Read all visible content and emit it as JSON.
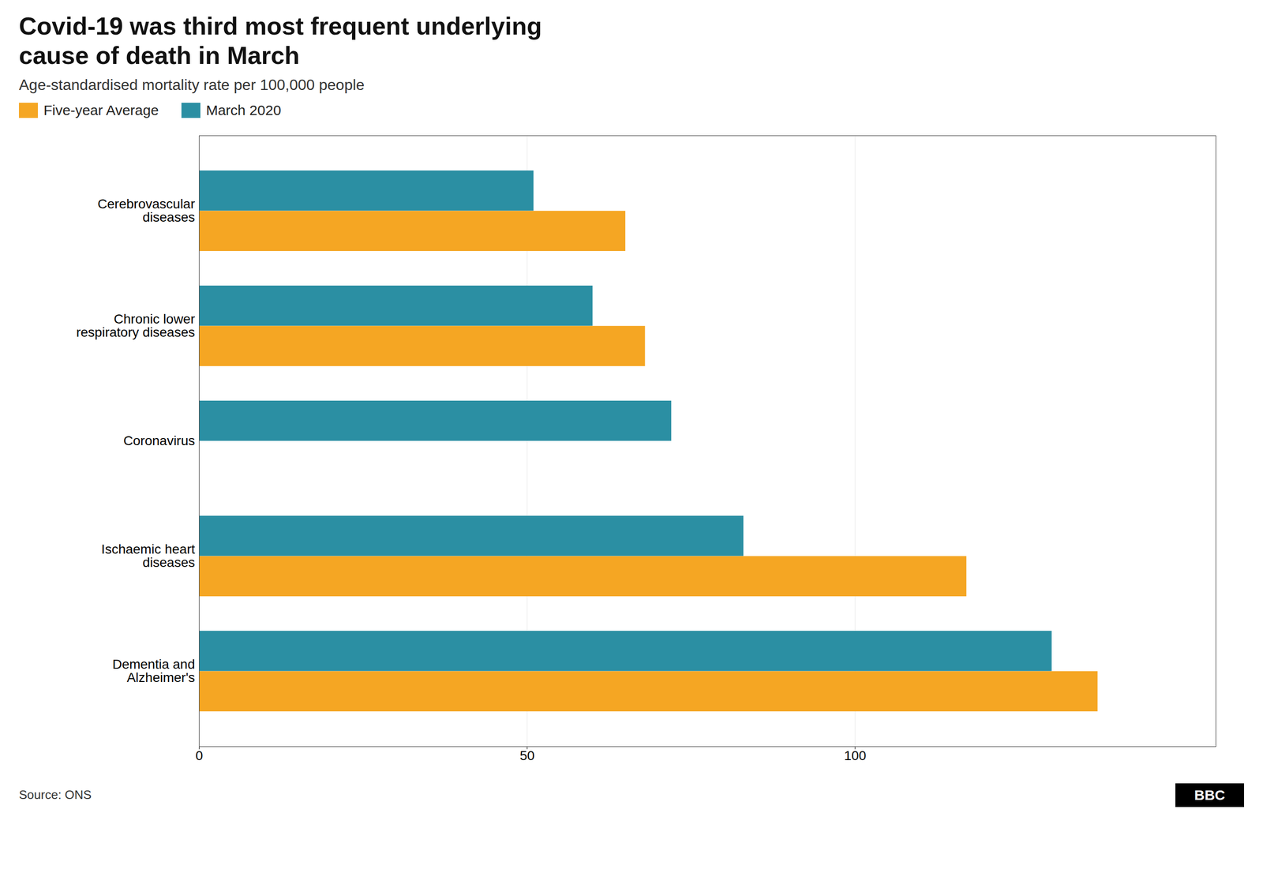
{
  "chart_data": {
    "type": "bar",
    "orientation": "horizontal",
    "title": "Covid-19 was third most frequent underlying\ncause of death in March",
    "subtitle": "Age-standardised mortality rate per 100,000 people",
    "categories": [
      "Cerebrovascular\ndiseases",
      "Chronic lower\nrespiratory diseases",
      "Coronavirus",
      "Ischaemic heart\ndiseases",
      "Dementia and\nAlzheimer's"
    ],
    "series": [
      {
        "name": "Five-year Average",
        "color": "#F5A623",
        "values": [
          65,
          68,
          0,
          117,
          137
        ]
      },
      {
        "name": "March 2020",
        "color": "#2B8FA3",
        "values": [
          51,
          60,
          72,
          83,
          130
        ]
      }
    ],
    "xlim": [
      0,
      155
    ],
    "xticks": [
      0,
      50,
      100
    ],
    "grid": true,
    "legend": "upper left",
    "source": "Source: ONS",
    "logo": "BBC"
  }
}
